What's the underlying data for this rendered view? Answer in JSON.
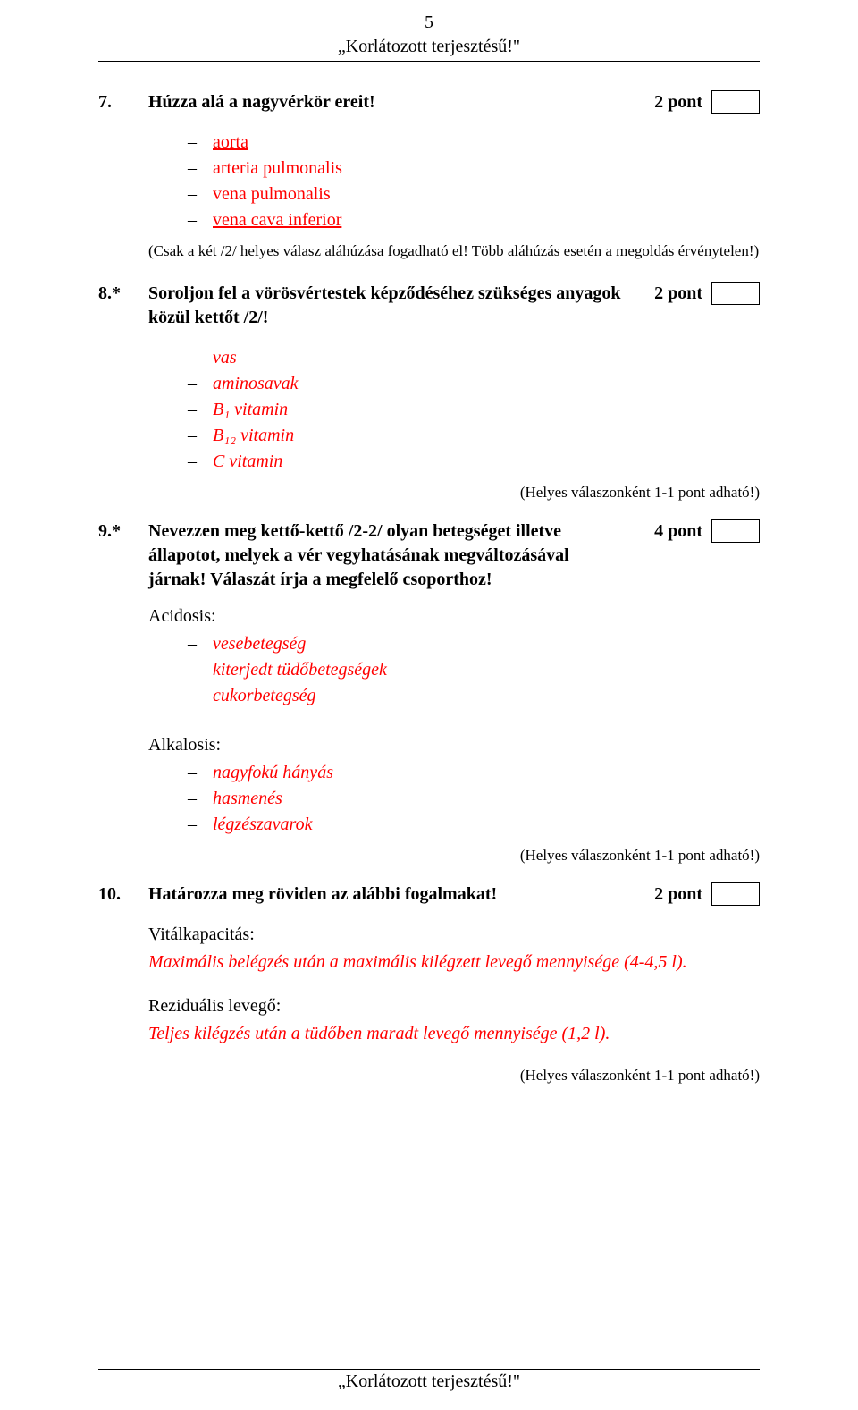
{
  "meta": {
    "page_number": "5",
    "header_subtitle": "„Korlátozott terjesztésű!\"",
    "footer_text": "„Korlátozott terjesztésű!\""
  },
  "q7": {
    "num": "7.",
    "text": "Húzza alá a nagyvérkör ereit!",
    "points": "2 pont",
    "items": [
      "aorta",
      "arteria pulmonalis",
      "vena pulmonalis",
      "vena cava inferior"
    ],
    "underlined": [
      true,
      false,
      false,
      true
    ],
    "note": "(Csak a két /2/ helyes válasz aláhúzása fogadható el! Több aláhúzás esetén a megoldás érvénytelen!)"
  },
  "q8": {
    "num": "8.*",
    "text": "Soroljon fel a vörösvértestek képződéséhez szükséges anyagok közül kettőt /2/!",
    "points": "2 pont",
    "items": [
      "vas",
      "aminosavak",
      "B₁ vitamin",
      "B₁₂ vitamin",
      "C vitamin"
    ],
    "note_right": "(Helyes válaszonként 1-1 pont adható!)"
  },
  "q9": {
    "num": "9.*",
    "text": "Nevezzen meg kettő-kettő /2-2/ olyan betegséget illetve állapotot, melyek a vér vegyhatásának megváltozásával járnak! Válaszát írja a megfelelő csoporthoz!",
    "points": "4 pont",
    "group1_label": "Acidosis:",
    "group1_items": [
      "vesebetegség",
      "kiterjedt tüdőbetegségek",
      "cukorbetegség"
    ],
    "group2_label": "Alkalosis:",
    "group2_items": [
      "nagyfokú hányás",
      "hasmenés",
      "légzészavarok"
    ],
    "note_right": "(Helyes válaszonként 1-1 pont adható!)"
  },
  "q10": {
    "num": "10.",
    "text": "Határozza meg röviden az alábbi fogalmakat!",
    "points": "2 pont",
    "def1_label": "Vitálkapacitás:",
    "def1_text": "Maximális belégzés után a maximális kilégzett levegő mennyisége (4-4,5 l).",
    "def2_label": "Reziduális levegő:",
    "def2_text": "Teljes kilégzés után a tüdőben maradt levegő mennyisége (1,2 l).",
    "note_right": "(Helyes válaszonként 1-1 pont adható!)"
  },
  "colors": {
    "text": "#000000",
    "answer": "#ff0000",
    "background": "#ffffff",
    "rule": "#000000"
  },
  "typography": {
    "body_family": "Times New Roman",
    "body_size_pt": 15,
    "note_size_pt": 13,
    "bold_questions": true
  }
}
